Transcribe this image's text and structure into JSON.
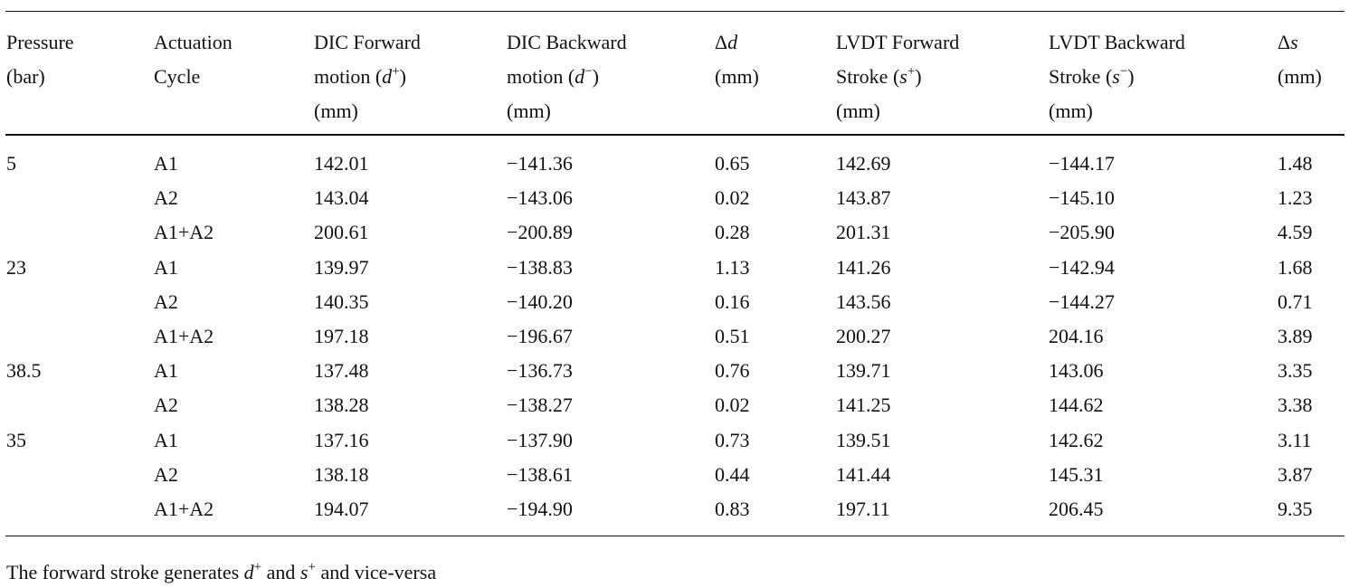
{
  "caption_fragment": "",
  "table": {
    "columns": [
      {
        "line1": "Pressure",
        "line2": "(bar)",
        "line3": ""
      },
      {
        "line1": "Actuation",
        "line2": "Cycle",
        "line3": ""
      },
      {
        "line1": "DIC Forward",
        "line2_pre": "motion (",
        "line2_var": "d",
        "line2_sup": "+",
        "line2_post": ")",
        "line3": "(mm)"
      },
      {
        "line1": "DIC Backward",
        "line2_pre": "motion (",
        "line2_var": "d",
        "line2_sup": "−",
        "line2_post": ")",
        "line3": "(mm)"
      },
      {
        "line1_pre": "Δ",
        "line1_var": "d",
        "line2": "(mm)",
        "line3": ""
      },
      {
        "line1": "LVDT Forward",
        "line2_pre": "Stroke (",
        "line2_var": "s",
        "line2_sup": "+",
        "line2_post": ")",
        "line3": "(mm)"
      },
      {
        "line1": "LVDT Backward",
        "line2_pre": "Stroke (",
        "line2_var": "s",
        "line2_sup": "−",
        "line2_post": ")",
        "line3": "(mm)"
      },
      {
        "line1_pre": "Δ",
        "line1_var": "s",
        "line2": "(mm)",
        "line3": ""
      }
    ],
    "rows": [
      {
        "pressure": "5",
        "cycle": "A1",
        "dic_fwd": "142.01",
        "dic_bwd": "−141.36",
        "dd": "0.65",
        "lvdt_fwd": "142.69",
        "lvdt_bwd": "−144.17",
        "ds": "1.48"
      },
      {
        "pressure": "",
        "cycle": "A2",
        "dic_fwd": "143.04",
        "dic_bwd": "−143.06",
        "dd": "0.02",
        "lvdt_fwd": "143.87",
        "lvdt_bwd": "−145.10",
        "ds": "1.23"
      },
      {
        "pressure": "",
        "cycle": "A1+A2",
        "dic_fwd": "200.61",
        "dic_bwd": "−200.89",
        "dd": "0.28",
        "lvdt_fwd": "201.31",
        "lvdt_bwd": "−205.90",
        "ds": "4.59"
      },
      {
        "pressure": "23",
        "cycle": "A1",
        "dic_fwd": "139.97",
        "dic_bwd": "−138.83",
        "dd": "1.13",
        "lvdt_fwd": "141.26",
        "lvdt_bwd": "−142.94",
        "ds": "1.68"
      },
      {
        "pressure": "",
        "cycle": "A2",
        "dic_fwd": "140.35",
        "dic_bwd": "−140.20",
        "dd": "0.16",
        "lvdt_fwd": "143.56",
        "lvdt_bwd": "−144.27",
        "ds": "0.71"
      },
      {
        "pressure": "",
        "cycle": "A1+A2",
        "dic_fwd": "197.18",
        "dic_bwd": "−196.67",
        "dd": "0.51",
        "lvdt_fwd": "200.27",
        "lvdt_bwd": "204.16",
        "ds": "3.89"
      },
      {
        "pressure": "38.5",
        "cycle": "A1",
        "dic_fwd": "137.48",
        "dic_bwd": "−136.73",
        "dd": "0.76",
        "lvdt_fwd": "139.71",
        "lvdt_bwd": "143.06",
        "ds": "3.35"
      },
      {
        "pressure": "",
        "cycle": "A2",
        "dic_fwd": "138.28",
        "dic_bwd": "−138.27",
        "dd": "0.02",
        "lvdt_fwd": "141.25",
        "lvdt_bwd": "144.62",
        "ds": "3.38"
      },
      {
        "pressure": "35",
        "cycle": "A1",
        "dic_fwd": "137.16",
        "dic_bwd": "−137.90",
        "dd": "0.73",
        "lvdt_fwd": "139.51",
        "lvdt_bwd": "142.62",
        "ds": "3.11"
      },
      {
        "pressure": "",
        "cycle": "A2",
        "dic_fwd": "138.18",
        "dic_bwd": "−138.61",
        "dd": "0.44",
        "lvdt_fwd": "141.44",
        "lvdt_bwd": "145.31",
        "ds": "3.87"
      },
      {
        "pressure": "",
        "cycle": "A1+A2",
        "dic_fwd": "194.07",
        "dic_bwd": "−194.90",
        "dd": "0.83",
        "lvdt_fwd": "197.11",
        "lvdt_bwd": "206.45",
        "ds": "9.35"
      }
    ]
  },
  "footnote": {
    "pre": "The forward stroke generates ",
    "var1": "d",
    "sup1": "+",
    "mid": " and ",
    "var2": "s",
    "sup2": "+",
    "post": " and vice-versa"
  }
}
